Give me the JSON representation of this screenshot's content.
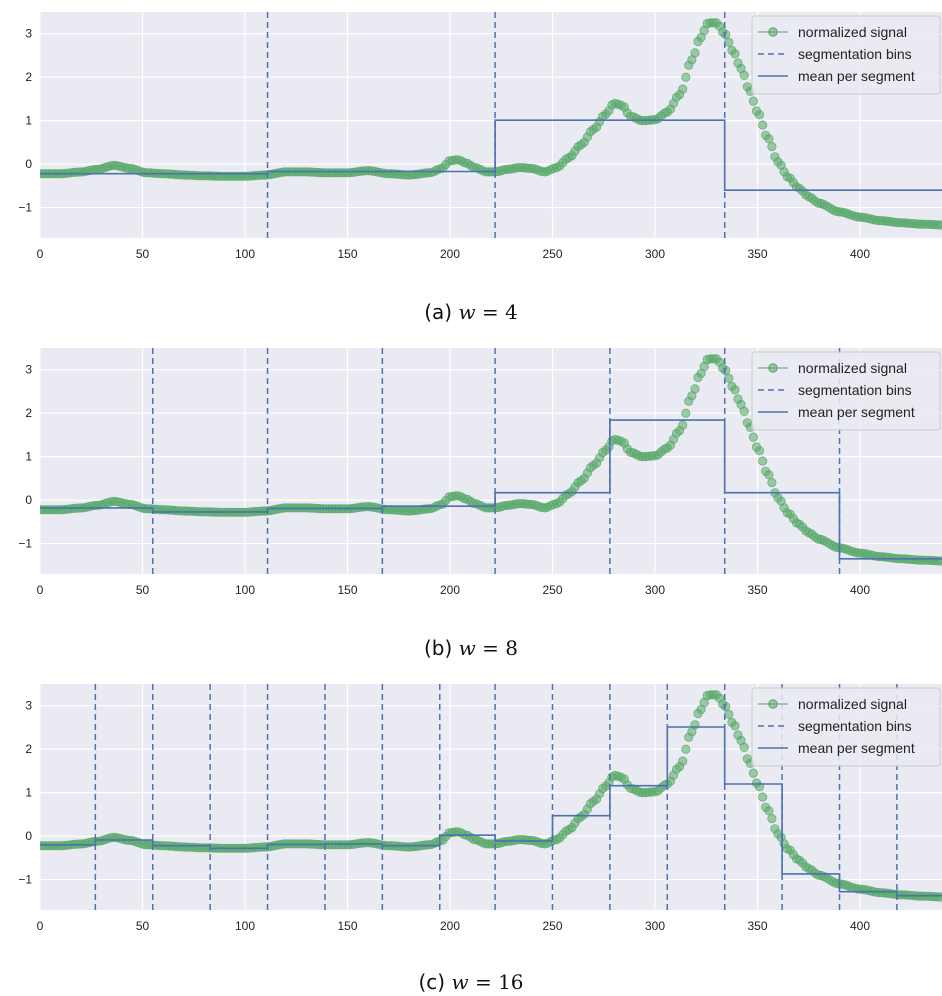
{
  "panels": [
    {
      "caption_label": "(a)",
      "caption_var": "w",
      "caption_eq": "=",
      "caption_value": "4",
      "legend": [
        "normalized signal",
        "segmentation bins",
        "mean per segment"
      ]
    },
    {
      "caption_label": "(b)",
      "caption_var": "w",
      "caption_eq": "=",
      "caption_value": "8",
      "legend": [
        "normalized signal",
        "segmentation bins",
        "mean per segment"
      ]
    },
    {
      "caption_label": "(c)",
      "caption_var": "w",
      "caption_eq": "=",
      "caption_value": "16",
      "legend": [
        "normalized signal",
        "segmentation bins",
        "mean per segment"
      ]
    }
  ],
  "colors": {
    "signal": "#55a868",
    "segments": "#4c72b0",
    "plot_bg": "#eaeaf2",
    "grid": "#ffffff"
  },
  "chart_data": [
    {
      "type": "line",
      "xlim": [
        0,
        440
      ],
      "ylim": [
        -1.7,
        3.5
      ],
      "xticks": [
        0,
        50,
        100,
        150,
        200,
        250,
        300,
        350,
        400
      ],
      "yticks": [
        -1,
        0,
        1,
        2,
        3
      ],
      "signal_keypoints": {
        "x": [
          0,
          10,
          20,
          28,
          36,
          44,
          52,
          60,
          70,
          80,
          90,
          100,
          110,
          120,
          130,
          140,
          150,
          160,
          170,
          180,
          190,
          196,
          200,
          204,
          208,
          212,
          218,
          222,
          228,
          234,
          240,
          246,
          252,
          258,
          264,
          270,
          276,
          280,
          284,
          288,
          294,
          300,
          306,
          312,
          318,
          322,
          326,
          330,
          334,
          338,
          342,
          346,
          350,
          355,
          360,
          365,
          370,
          375,
          380,
          390,
          400,
          410,
          420,
          430,
          440
        ],
        "y": [
          -0.22,
          -0.22,
          -0.18,
          -0.12,
          -0.03,
          -0.1,
          -0.2,
          -0.22,
          -0.25,
          -0.27,
          -0.28,
          -0.28,
          -0.25,
          -0.18,
          -0.18,
          -0.2,
          -0.2,
          -0.15,
          -0.22,
          -0.25,
          -0.2,
          -0.1,
          0.08,
          0.1,
          0.02,
          -0.08,
          -0.18,
          -0.18,
          -0.12,
          -0.08,
          -0.1,
          -0.18,
          -0.08,
          0.15,
          0.45,
          0.8,
          1.15,
          1.4,
          1.35,
          1.1,
          1.0,
          1.02,
          1.2,
          1.6,
          2.4,
          2.9,
          3.25,
          3.25,
          3.0,
          2.6,
          2.2,
          1.7,
          1.2,
          0.6,
          0.05,
          -0.3,
          -0.55,
          -0.75,
          -0.9,
          -1.1,
          -1.22,
          -1.3,
          -1.35,
          -1.38,
          -1.4
        ]
      },
      "bins": [
        111,
        222,
        334
      ],
      "segment_means": [
        {
          "x0": 0,
          "x1": 111,
          "y": -0.22
        },
        {
          "x0": 111,
          "x1": 222,
          "y": -0.17
        },
        {
          "x0": 222,
          "x1": 334,
          "y": 1.01
        },
        {
          "x0": 334,
          "x1": 445,
          "y": -0.6
        }
      ]
    },
    {
      "type": "line",
      "xlim": [
        0,
        440
      ],
      "ylim": [
        -1.7,
        3.5
      ],
      "xticks": [
        0,
        50,
        100,
        150,
        200,
        250,
        300,
        350,
        400
      ],
      "yticks": [
        -1,
        0,
        1,
        2,
        3
      ],
      "bins": [
        55,
        111,
        167,
        222,
        278,
        334,
        390
      ],
      "segment_means": [
        {
          "x0": 0,
          "x1": 55,
          "y": -0.18
        },
        {
          "x0": 55,
          "x1": 111,
          "y": -0.27
        },
        {
          "x0": 111,
          "x1": 167,
          "y": -0.19
        },
        {
          "x0": 167,
          "x1": 222,
          "y": -0.14
        },
        {
          "x0": 222,
          "x1": 278,
          "y": 0.17
        },
        {
          "x0": 278,
          "x1": 334,
          "y": 1.84
        },
        {
          "x0": 334,
          "x1": 390,
          "y": 0.17
        },
        {
          "x0": 390,
          "x1": 445,
          "y": -1.35
        }
      ]
    },
    {
      "type": "line",
      "xlim": [
        0,
        440
      ],
      "ylim": [
        -1.7,
        3.5
      ],
      "xticks": [
        0,
        50,
        100,
        150,
        200,
        250,
        300,
        350,
        400
      ],
      "yticks": [
        -1,
        0,
        1,
        2,
        3
      ],
      "bins": [
        27,
        55,
        83,
        111,
        139,
        167,
        195,
        222,
        250,
        278,
        306,
        334,
        362,
        390,
        418
      ],
      "segment_means": [
        {
          "x0": 0,
          "x1": 27,
          "y": -0.2
        },
        {
          "x0": 27,
          "x1": 55,
          "y": -0.09
        },
        {
          "x0": 55,
          "x1": 83,
          "y": -0.22
        },
        {
          "x0": 83,
          "x1": 111,
          "y": -0.28
        },
        {
          "x0": 111,
          "x1": 139,
          "y": -0.19
        },
        {
          "x0": 139,
          "x1": 167,
          "y": -0.18
        },
        {
          "x0": 167,
          "x1": 195,
          "y": -0.22
        },
        {
          "x0": 195,
          "x1": 222,
          "y": 0.02
        },
        {
          "x0": 222,
          "x1": 250,
          "y": -0.11
        },
        {
          "x0": 250,
          "x1": 278,
          "y": 0.47
        },
        {
          "x0": 278,
          "x1": 306,
          "y": 1.16
        },
        {
          "x0": 306,
          "x1": 334,
          "y": 2.51
        },
        {
          "x0": 334,
          "x1": 362,
          "y": 1.2
        },
        {
          "x0": 362,
          "x1": 390,
          "y": -0.87
        },
        {
          "x0": 390,
          "x1": 418,
          "y": -1.28
        },
        {
          "x0": 418,
          "x1": 445,
          "y": -1.37
        }
      ]
    }
  ]
}
